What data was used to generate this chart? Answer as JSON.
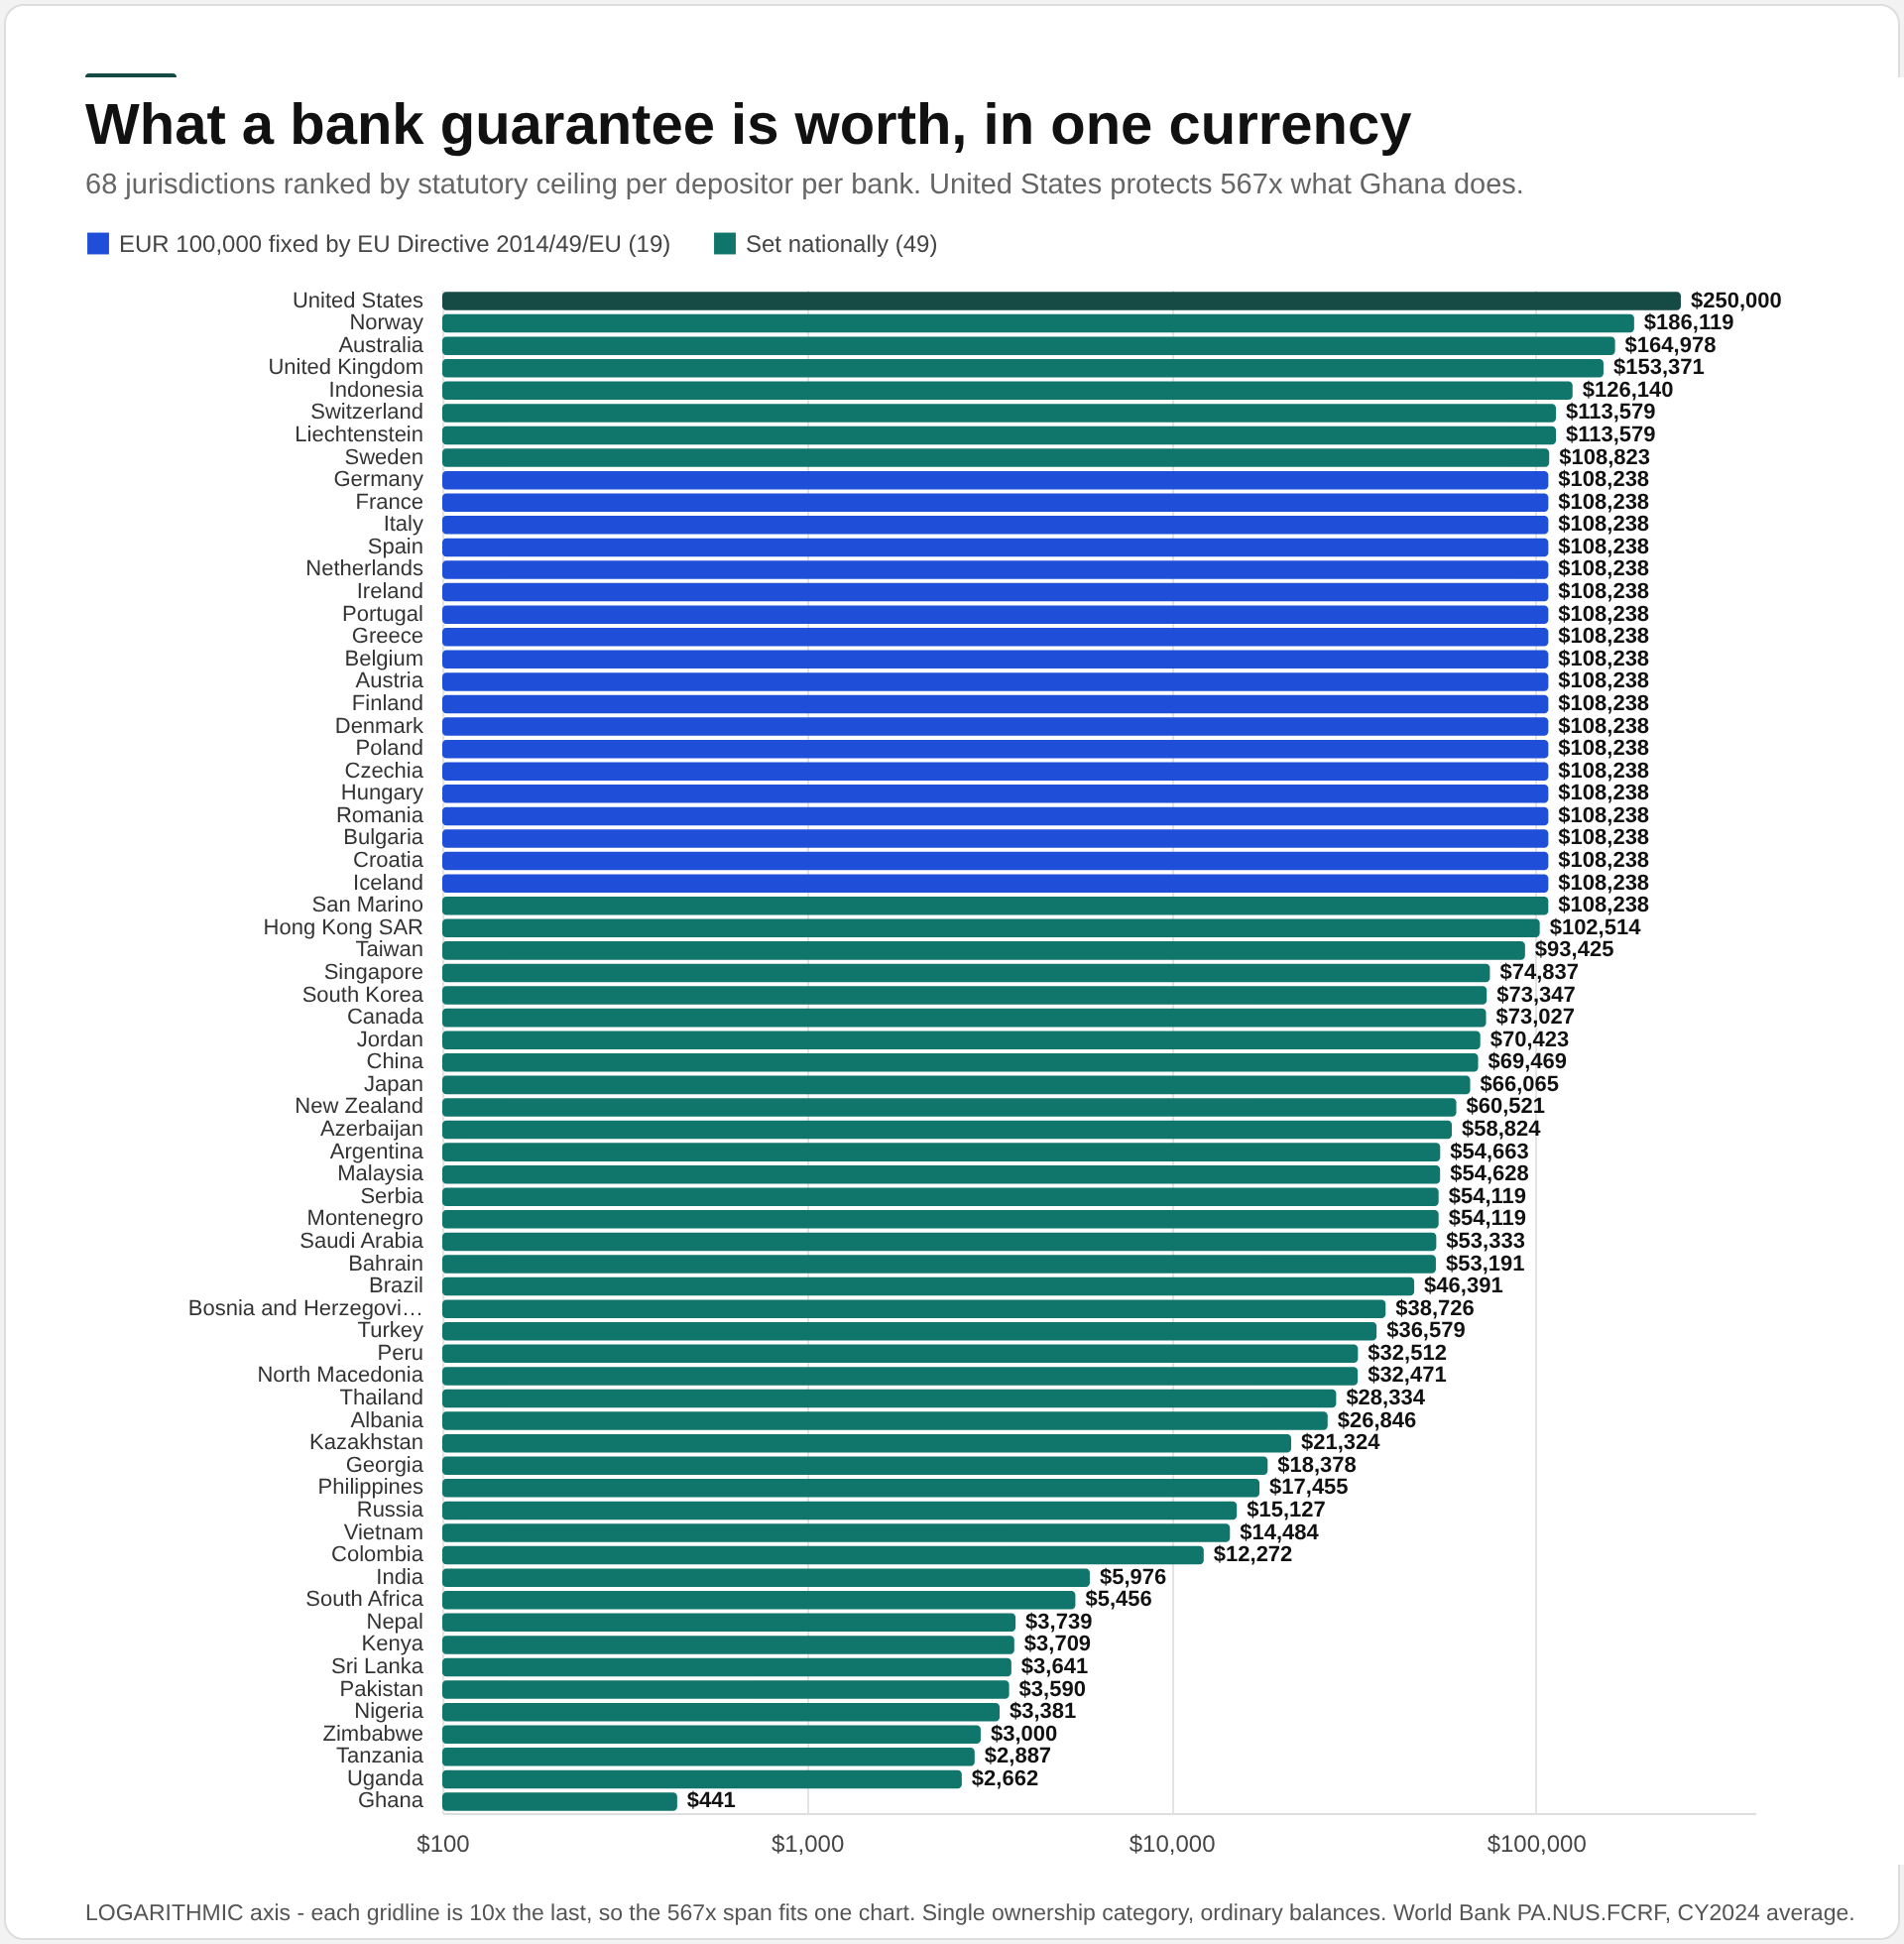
{
  "chart_data": {
    "type": "bar",
    "orientation": "horizontal",
    "title": "What a bank guarantee is worth, in one currency",
    "subtitle": "68 jurisdictions ranked by statutory ceiling per depositor per bank. United States protects 567x what Ghana does.",
    "categories": [
      "United States",
      "Norway",
      "Australia",
      "United Kingdom",
      "Indonesia",
      "Switzerland",
      "Liechtenstein",
      "Sweden",
      "Germany",
      "France",
      "Italy",
      "Spain",
      "Netherlands",
      "Ireland",
      "Portugal",
      "Greece",
      "Belgium",
      "Austria",
      "Finland",
      "Denmark",
      "Poland",
      "Czechia",
      "Hungary",
      "Romania",
      "Bulgaria",
      "Croatia",
      "Iceland",
      "San Marino",
      "Hong Kong SAR",
      "Taiwan",
      "Singapore",
      "South Korea",
      "Canada",
      "Jordan",
      "China",
      "Japan",
      "New Zealand",
      "Azerbaijan",
      "Argentina",
      "Malaysia",
      "Serbia",
      "Montenegro",
      "Saudi Arabia",
      "Bahrain",
      "Brazil",
      "Bosnia and Herzegovi…",
      "Turkey",
      "Peru",
      "North Macedonia",
      "Thailand",
      "Albania",
      "Kazakhstan",
      "Georgia",
      "Philippines",
      "Russia",
      "Vietnam",
      "Colombia",
      "India",
      "South Africa",
      "Nepal",
      "Kenya",
      "Sri Lanka",
      "Pakistan",
      "Nigeria",
      "Zimbabwe",
      "Tanzania",
      "Uganda",
      "Ghana"
    ],
    "series": [
      {
        "name": "EUR 100,000 fixed by EU Directive 2014/49/EU (19)",
        "color": "#1f4fd8",
        "values": [
          null,
          null,
          null,
          null,
          null,
          null,
          null,
          null,
          108238,
          108238,
          108238,
          108238,
          108238,
          108238,
          108238,
          108238,
          108238,
          108238,
          108238,
          108238,
          108238,
          108238,
          108238,
          108238,
          108238,
          108238,
          108238,
          null,
          null,
          null,
          null,
          null,
          null,
          null,
          null,
          null,
          null,
          null,
          null,
          null,
          null,
          null,
          null,
          null,
          null,
          null,
          null,
          null,
          null,
          null,
          null,
          null,
          null,
          null,
          null,
          null,
          null,
          null,
          null,
          null,
          null,
          null,
          null,
          null,
          null,
          null,
          null,
          null
        ],
        "value_labels": [
          null,
          null,
          null,
          null,
          null,
          null,
          null,
          null,
          "$108,238",
          "$108,238",
          "$108,238",
          "$108,238",
          "$108,238",
          "$108,238",
          "$108,238",
          "$108,238",
          "$108,238",
          "$108,238",
          "$108,238",
          "$108,238",
          "$108,238",
          "$108,238",
          "$108,238",
          "$108,238",
          "$108,238",
          "$108,238",
          "$108,238",
          null,
          null,
          null,
          null,
          null,
          null,
          null,
          null,
          null,
          null,
          null,
          null,
          null,
          null,
          null,
          null,
          null,
          null,
          null,
          null,
          null,
          null,
          null,
          null,
          null,
          null,
          null,
          null,
          null,
          null,
          null,
          null,
          null,
          null,
          null,
          null,
          null,
          null,
          null,
          null,
          null
        ]
      },
      {
        "name": "Set nationally (49)",
        "color": "#10766b",
        "values": [
          null,
          186119,
          164978,
          153371,
          126140,
          113579,
          113579,
          108823,
          null,
          null,
          null,
          null,
          null,
          null,
          null,
          null,
          null,
          null,
          null,
          null,
          null,
          null,
          null,
          null,
          null,
          null,
          null,
          108238,
          102514,
          93425,
          74837,
          73347,
          73027,
          70423,
          69469,
          66065,
          60521,
          58824,
          54663,
          54628,
          54119,
          54119,
          53333,
          53191,
          46391,
          38726,
          36579,
          32512,
          32471,
          28334,
          26846,
          21324,
          18378,
          17455,
          15127,
          14484,
          12272,
          5976,
          5456,
          3739,
          3709,
          3641,
          3590,
          3381,
          3000,
          2887,
          2662,
          441
        ],
        "value_labels": [
          null,
          "$186,119",
          "$164,978",
          "$153,371",
          "$126,140",
          "$113,579",
          "$113,579",
          "$108,823",
          null,
          null,
          null,
          null,
          null,
          null,
          null,
          null,
          null,
          null,
          null,
          null,
          null,
          null,
          null,
          null,
          null,
          null,
          null,
          "$108,238",
          "$102,514",
          "$93,425",
          "$74,837",
          "$73,347",
          "$73,027",
          "$70,423",
          "$69,469",
          "$66,065",
          "$60,521",
          "$58,824",
          "$54,663",
          "$54,628",
          "$54,119",
          "$54,119",
          "$53,333",
          "$53,191",
          "$46,391",
          "$38,726",
          "$36,579",
          "$32,512",
          "$32,471",
          "$28,334",
          "$26,846",
          "$21,324",
          "$18,378",
          "$17,455",
          "$15,127",
          "$14,484",
          "$12,272",
          "$5,976",
          "$5,456",
          "$3,739",
          "$3,709",
          "$3,641",
          "$3,590",
          "$3,381",
          "$3,000",
          "$2,887",
          "$2,662",
          "$441"
        ]
      },
      {
        "color": "#164b45",
        "values": [
          250000,
          null,
          null,
          null,
          null,
          null,
          null,
          null,
          null,
          null,
          null,
          null,
          null,
          null,
          null,
          null,
          null,
          null,
          null,
          null,
          null,
          null,
          null,
          null,
          null,
          null,
          null,
          null,
          null,
          null,
          null,
          null,
          null,
          null,
          null,
          null,
          null,
          null,
          null,
          null,
          null,
          null,
          null,
          null,
          null,
          null,
          null,
          null,
          null,
          null,
          null,
          null,
          null,
          null,
          null,
          null,
          null,
          null,
          null,
          null,
          null,
          null,
          null,
          null,
          null,
          null,
          null,
          null
        ],
        "value_labels": [
          "$250,000",
          null,
          null,
          null,
          null,
          null,
          null,
          null,
          null,
          null,
          null,
          null,
          null,
          null,
          null,
          null,
          null,
          null,
          null,
          null,
          null,
          null,
          null,
          null,
          null,
          null,
          null,
          null,
          null,
          null,
          null,
          null,
          null,
          null,
          null,
          null,
          null,
          null,
          null,
          null,
          null,
          null,
          null,
          null,
          null,
          null,
          null,
          null,
          null,
          null,
          null,
          null,
          null,
          null,
          null,
          null,
          null,
          null,
          null,
          null,
          null,
          null,
          null,
          null,
          null,
          null,
          null,
          null
        ]
      }
    ],
    "log": "x",
    "xlim": [
      100,
      400000
    ],
    "xticks": [
      {
        "value": 100,
        "label": "$100"
      },
      {
        "value": 1000,
        "label": "$1,000"
      },
      {
        "value": 10000,
        "label": "$10,000"
      },
      {
        "value": 100000,
        "label": "$100,000"
      }
    ],
    "grid": "x",
    "legend": "top left",
    "annotations": [
      "LOGARITHMIC axis - each gridline is 10x the last, so the 567x span fits one chart. Single ownership category, ordinary balances. World Bank PA.NUS.FCRF, CY2024 average."
    ]
  }
}
